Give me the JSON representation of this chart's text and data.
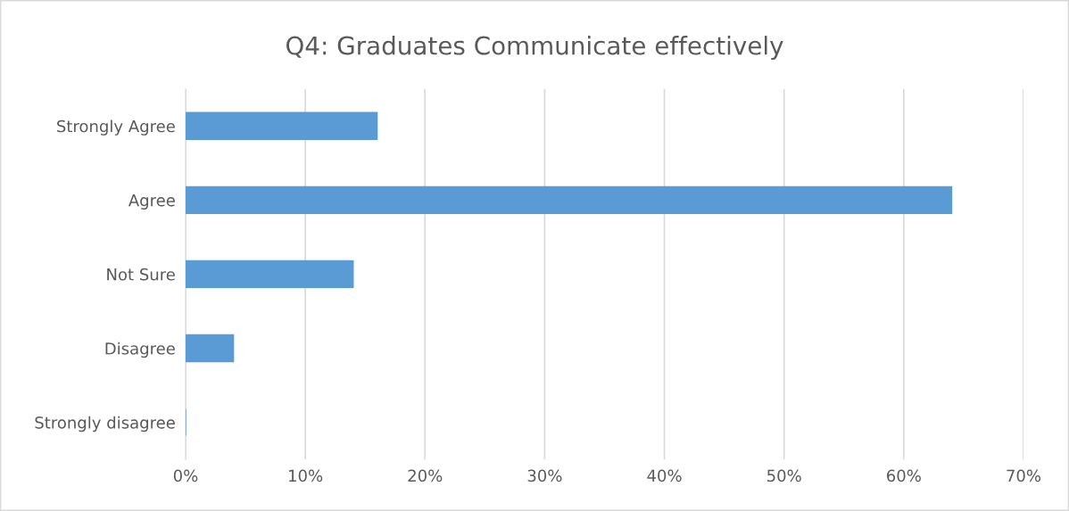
{
  "chart_data": {
    "type": "bar",
    "orientation": "horizontal",
    "title": "Q4: Graduates Communicate effectively",
    "categories": [
      "Strongly Agree",
      "Agree",
      "Not Sure",
      "Disagree",
      "Strongly disagree"
    ],
    "values": [
      16,
      64,
      14,
      4,
      0
    ],
    "color": "#5b9bd5",
    "xlim": [
      0,
      70
    ],
    "xticks": [
      {
        "value": 0,
        "label": "0%"
      },
      {
        "value": 10,
        "label": "10%"
      },
      {
        "value": 20,
        "label": "20%"
      },
      {
        "value": 30,
        "label": "30%"
      },
      {
        "value": 40,
        "label": "40%"
      },
      {
        "value": 50,
        "label": "50%"
      },
      {
        "value": 60,
        "label": "60%"
      },
      {
        "value": 70,
        "label": "70%"
      }
    ],
    "grid": "x"
  }
}
